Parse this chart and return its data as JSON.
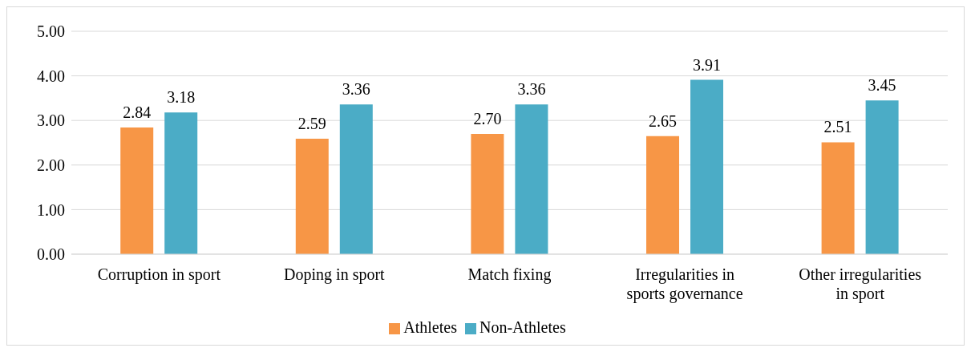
{
  "chart_data": {
    "type": "bar",
    "categories": [
      "Corruption in sport",
      "Doping in sport",
      "Match fixing",
      "Irregularities in sports governance",
      "Other irregularities in sport"
    ],
    "series": [
      {
        "name": "Athletes",
        "color": "#f79646",
        "values": [
          2.84,
          2.59,
          2.7,
          2.65,
          2.51
        ],
        "value_labels": [
          "2.84",
          "2.59",
          "2.70",
          "2.65",
          "2.51"
        ]
      },
      {
        "name": "Non-Athletes",
        "color": "#4bacc6",
        "values": [
          3.18,
          3.36,
          3.36,
          3.91,
          3.45
        ],
        "value_labels": [
          "3.18",
          "3.36",
          "3.36",
          "3.91",
          "3.45"
        ]
      }
    ],
    "ylim": [
      0,
      5
    ],
    "yticks": [
      {
        "value": 0,
        "label": "0.00"
      },
      {
        "value": 1,
        "label": "1.00"
      },
      {
        "value": 2,
        "label": "2.00"
      },
      {
        "value": 3,
        "label": "3.00"
      },
      {
        "value": 4,
        "label": "4.00"
      },
      {
        "value": 5,
        "label": "5.00"
      }
    ],
    "grid": "y",
    "legend": "bottom"
  }
}
